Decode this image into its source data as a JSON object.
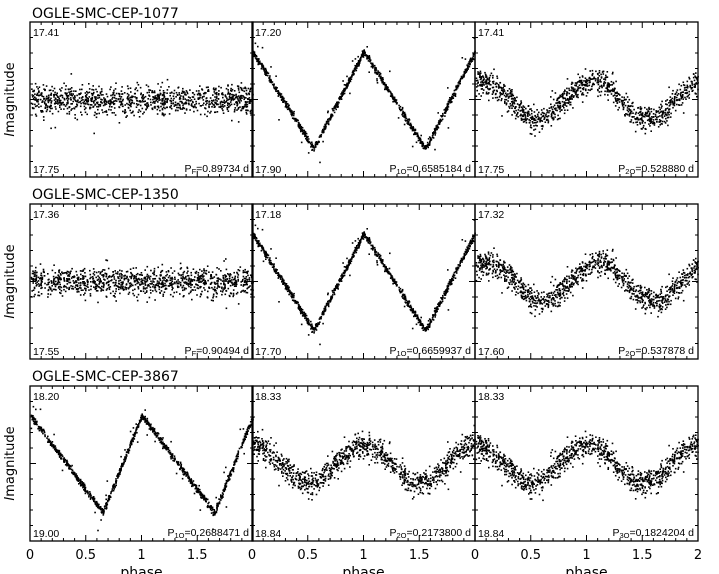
{
  "chart_data": {
    "type": "scatter",
    "xlabel": "phase",
    "ylabel_italic": "I",
    "ylabel_rest": "magnitude",
    "xlim": [
      0,
      2
    ],
    "x_ticks": [
      "0",
      "0.5",
      "1",
      "1.5",
      "2"
    ],
    "x_tick_values": [
      0,
      0.5,
      1,
      1.5,
      2
    ],
    "rows": [
      {
        "name": "OGLE-SMC-CEP-1077",
        "panels": [
          {
            "ymin": "17.41",
            "ymax": "17.75",
            "period_label": "P",
            "period_sub": "F",
            "period_value": "=0.89734 d",
            "shape": "flat",
            "amplitude": 0.04,
            "min_phase": 0.0
          },
          {
            "ymin": "17.20",
            "ymax": "17.90",
            "period_label": "P",
            "period_sub": "1O",
            "period_value": "=0.6585184 d",
            "shape": "sawtooth",
            "amplitude": 0.29,
            "min_phase": 0.55
          },
          {
            "ymin": "17.41",
            "ymax": "17.75",
            "period_label": "P",
            "period_sub": "2O",
            "period_value": "=0.528880 d",
            "shape": "sine",
            "amplitude": 0.04,
            "min_phase": 0.55
          }
        ]
      },
      {
        "name": "OGLE-SMC-CEP-1350",
        "panels": [
          {
            "ymin": "17.36",
            "ymax": "17.55",
            "period_label": "P",
            "period_sub": "F",
            "period_value": "=0.90494 d",
            "shape": "flat",
            "amplitude": 0.01,
            "min_phase": 0.0
          },
          {
            "ymin": "17.18",
            "ymax": "17.70",
            "period_label": "P",
            "period_sub": "1O",
            "period_value": "=0.6659937 d",
            "shape": "sawtooth",
            "amplitude": 0.21,
            "min_phase": 0.55
          },
          {
            "ymin": "17.32",
            "ymax": "17.60",
            "period_label": "P",
            "period_sub": "2O",
            "period_value": "=0.537878 d",
            "shape": "sine",
            "amplitude": 0.06,
            "min_phase": 0.6
          }
        ]
      },
      {
        "name": "OGLE-SMC-CEP-3867",
        "panels": [
          {
            "ymin": "18.20",
            "ymax": "19.00",
            "period_label": "P",
            "period_sub": "1O",
            "period_value": "=0.2688471 d",
            "shape": "sawtooth",
            "amplitude": 0.29,
            "min_phase": 0.65
          },
          {
            "ymin": "18.33",
            "ymax": "18.84",
            "period_label": "P",
            "period_sub": "2O",
            "period_value": "=0.2173800 d",
            "shape": "sine",
            "amplitude": 0.02,
            "min_phase": 0.5
          },
          {
            "ymin": "18.33",
            "ymax": "18.84",
            "period_label": "P",
            "period_sub": "3O",
            "period_value": "=0.1824204 d",
            "shape": "sine",
            "amplitude": 0.02,
            "min_phase": 0.5
          }
        ]
      }
    ]
  }
}
